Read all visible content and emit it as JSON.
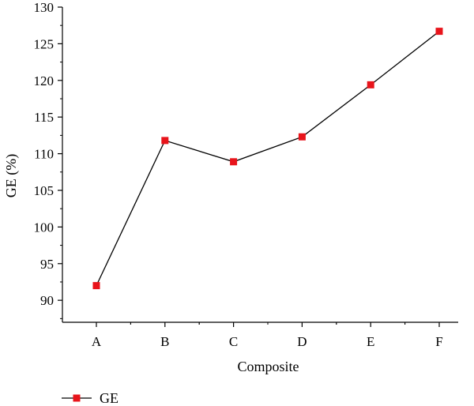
{
  "chart_data": {
    "type": "line",
    "categories": [
      "A",
      "B",
      "C",
      "D",
      "E",
      "F"
    ],
    "series": [
      {
        "name": "GE",
        "values": [
          92.0,
          111.8,
          108.9,
          112.3,
          119.4,
          126.7
        ],
        "color": "#e8141b",
        "marker": "square"
      }
    ],
    "xlabel": "Composite",
    "ylabel": "GE (%)",
    "ylim": [
      87,
      130
    ],
    "yticks": [
      90,
      95,
      100,
      105,
      110,
      115,
      120,
      125,
      130
    ],
    "grid": false,
    "legend": {
      "placement": "bottom-left",
      "entries": [
        "GE"
      ]
    },
    "line_color": "#000000"
  }
}
